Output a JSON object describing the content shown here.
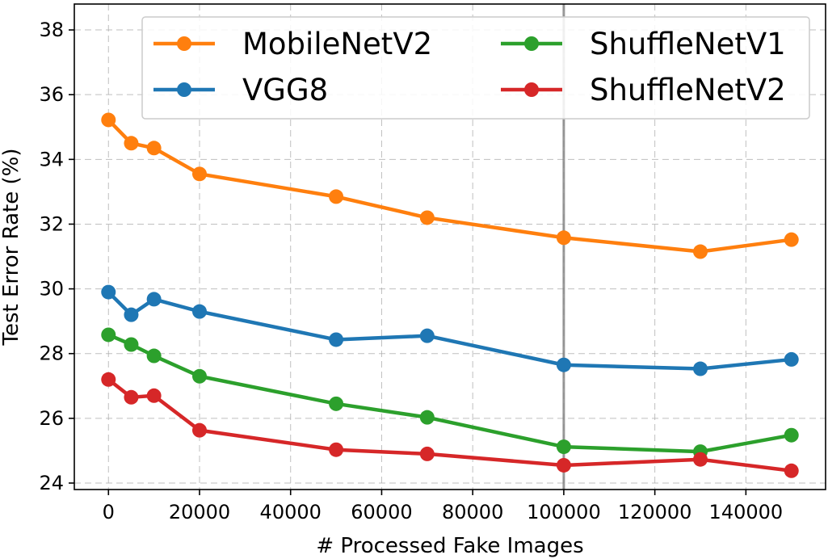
{
  "chart_data": {
    "type": "line",
    "xlabel": "# Processed Fake Images",
    "ylabel": "Test Error Rate (%)",
    "xlim": [
      -7500,
      157500
    ],
    "ylim": [
      23.8,
      38.8
    ],
    "xticks": [
      0,
      20000,
      40000,
      60000,
      80000,
      100000,
      120000,
      140000
    ],
    "xtick_labels": [
      "0",
      "20000",
      "40000",
      "60000",
      "80000",
      "100000",
      "120000",
      "140000"
    ],
    "yticks": [
      24,
      26,
      28,
      30,
      32,
      34,
      36,
      38
    ],
    "ytick_labels": [
      "24",
      "26",
      "28",
      "30",
      "32",
      "34",
      "36",
      "38"
    ],
    "grid": true,
    "vline_x": 100000,
    "legend_position": "top-right",
    "x": [
      0,
      5000,
      10000,
      20000,
      50000,
      70000,
      100000,
      130000,
      150000
    ],
    "series": [
      {
        "name": "MobileNetV2",
        "color": "#ff7f0e",
        "values": [
          35.22,
          34.5,
          34.35,
          33.55,
          32.85,
          32.2,
          31.58,
          31.15,
          31.52
        ]
      },
      {
        "name": "VGG8",
        "color": "#1f77b4",
        "values": [
          29.9,
          29.2,
          29.68,
          29.3,
          28.43,
          28.55,
          27.65,
          27.53,
          27.82
        ]
      },
      {
        "name": "ShuffleNetV1",
        "color": "#2ca02c",
        "values": [
          28.58,
          28.28,
          27.93,
          27.3,
          26.45,
          26.03,
          25.12,
          24.97,
          25.48
        ]
      },
      {
        "name": "ShuffleNetV2",
        "color": "#d62728",
        "values": [
          27.2,
          26.65,
          26.7,
          25.63,
          25.03,
          24.9,
          24.55,
          24.73,
          24.38
        ]
      }
    ]
  }
}
